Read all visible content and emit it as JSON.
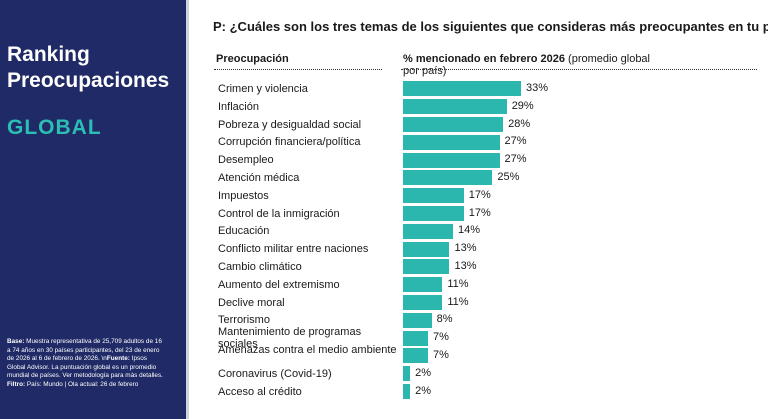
{
  "sidebar": {
    "title": "Ranking Preocupaciones",
    "region": "GLOBAL",
    "note_base_label": "Base:",
    "note_base_text": " Muestra representativa de 25,709 adultos de 16 a 74 años en 30 países participantes, del 23 de enero de 2026 al 6 de febrero de 2026. \\n",
    "note_source_label": "Fuente:",
    "note_source_text": " Ipsos Global Advisor. La puntuación global es un promedio mundial de países. Ver metodología para más detalles. ",
    "note_filter_label": "Filtro:",
    "note_filter_text": " País: Mundo | Ola actual: 26 de febrero"
  },
  "question": "P: ¿Cuáles son los tres temas de los siguientes que consideras más preocupantes en tu país?",
  "column_left_header": "Preocupación",
  "column_right_header_bold": "% mencionado en febrero 2026",
  "column_right_header_rest": " (promedio global por país)",
  "chart_data": {
    "type": "bar",
    "orientation": "horizontal",
    "value_suffix": "%",
    "bar_color": "#2bb7ad",
    "categories": [
      "Crimen y violencia",
      "Inflación",
      "Pobreza y desigualdad social",
      "Corrupción financiera/política",
      "Desempleo",
      "Atención médica",
      "Impuestos",
      "Control de la inmigración",
      "Educación",
      "Conflicto militar entre naciones",
      "Cambio climático",
      "Aumento del extremismo",
      "Declive moral",
      "Terrorismo",
      "Mantenimiento de programas sociales",
      "Amenazas contra el medio ambiente",
      "Coronavirus (Covid-19)",
      "Acceso al crédito"
    ],
    "values": [
      33,
      29,
      28,
      27,
      27,
      25,
      17,
      17,
      14,
      13,
      13,
      11,
      11,
      8,
      7,
      7,
      2,
      2
    ]
  }
}
